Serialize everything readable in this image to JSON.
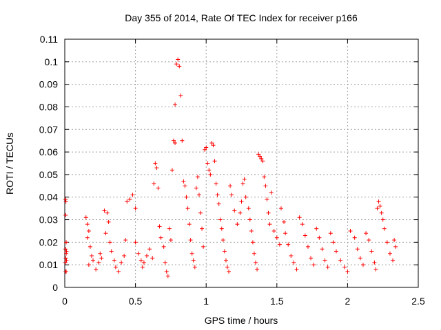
{
  "chart_data": {
    "type": "scatter",
    "title": "Day 355 of 2014, Rate Of TEC Index for receiver p166",
    "xlabel": "GPS time / hours",
    "ylabel": "ROTI / TECUs",
    "xlim": [
      0,
      2.5
    ],
    "ylim": [
      0,
      0.11
    ],
    "grid": true,
    "x_ticks": [
      0,
      0.5,
      1,
      1.5,
      2,
      2.5
    ],
    "x_tick_labels": [
      "0",
      "0.5",
      "1",
      "1.5",
      "2",
      "2.5"
    ],
    "y_ticks": [
      0,
      0.01,
      0.02,
      0.03,
      0.04,
      0.05,
      0.06,
      0.07,
      0.08,
      0.09,
      0.1,
      0.11
    ],
    "y_tick_labels": [
      "0",
      "0.01",
      "0.02",
      "0.03",
      "0.04",
      "0.05",
      "0.06",
      "0.07",
      "0.08",
      "0.09",
      "0.1",
      "0.11"
    ],
    "marker": "+",
    "color": "#ff0000",
    "series": [
      {
        "name": "ROTI",
        "points": [
          [
            0.005,
            0.039
          ],
          [
            0.008,
            0.038
          ],
          [
            0.006,
            0.032
          ],
          [
            0.01,
            0.02
          ],
          [
            0.005,
            0.017
          ],
          [
            0.01,
            0.015
          ],
          [
            0.007,
            0.013
          ],
          [
            0.012,
            0.012
          ],
          [
            0.004,
            0.011
          ],
          [
            0.006,
            0.007
          ],
          [
            0.01,
            0.007
          ],
          [
            0.012,
            0.016
          ],
          [
            0.15,
            0.031
          ],
          [
            0.16,
            0.028
          ],
          [
            0.17,
            0.025
          ],
          [
            0.16,
            0.022
          ],
          [
            0.18,
            0.018
          ],
          [
            0.19,
            0.014
          ],
          [
            0.2,
            0.012
          ],
          [
            0.17,
            0.01
          ],
          [
            0.22,
            0.008
          ],
          [
            0.24,
            0.011
          ],
          [
            0.25,
            0.015
          ],
          [
            0.26,
            0.013
          ],
          [
            0.28,
            0.034
          ],
          [
            0.3,
            0.033
          ],
          [
            0.31,
            0.029
          ],
          [
            0.29,
            0.024
          ],
          [
            0.32,
            0.02
          ],
          [
            0.33,
            0.016
          ],
          [
            0.35,
            0.012
          ],
          [
            0.36,
            0.009
          ],
          [
            0.38,
            0.007
          ],
          [
            0.4,
            0.011
          ],
          [
            0.42,
            0.014
          ],
          [
            0.43,
            0.021
          ],
          [
            0.44,
            0.038
          ],
          [
            0.46,
            0.039
          ],
          [
            0.48,
            0.041
          ],
          [
            0.5,
            0.035
          ],
          [
            0.5,
            0.02
          ],
          [
            0.52,
            0.015
          ],
          [
            0.54,
            0.012
          ],
          [
            0.55,
            0.009
          ],
          [
            0.56,
            0.011
          ],
          [
            0.58,
            0.014
          ],
          [
            0.6,
            0.017
          ],
          [
            0.62,
            0.013
          ],
          [
            0.63,
            0.046
          ],
          [
            0.64,
            0.055
          ],
          [
            0.65,
            0.053
          ],
          [
            0.66,
            0.044
          ],
          [
            0.67,
            0.027
          ],
          [
            0.68,
            0.022
          ],
          [
            0.7,
            0.018
          ],
          [
            0.71,
            0.011
          ],
          [
            0.72,
            0.007
          ],
          [
            0.73,
            0.005
          ],
          [
            0.74,
            0.026
          ],
          [
            0.75,
            0.021
          ],
          [
            0.76,
            0.052
          ],
          [
            0.77,
            0.065
          ],
          [
            0.78,
            0.064
          ],
          [
            0.79,
            0.099
          ],
          [
            0.8,
            0.101
          ],
          [
            0.81,
            0.098
          ],
          [
            0.78,
            0.081
          ],
          [
            0.82,
            0.085
          ],
          [
            0.83,
            0.065
          ],
          [
            0.84,
            0.047
          ],
          [
            0.85,
            0.045
          ],
          [
            0.86,
            0.04
          ],
          [
            0.87,
            0.035
          ],
          [
            0.88,
            0.028
          ],
          [
            0.89,
            0.021
          ],
          [
            0.9,
            0.015
          ],
          [
            0.91,
            0.012
          ],
          [
            0.92,
            0.009
          ],
          [
            0.93,
            0.044
          ],
          [
            0.94,
            0.049
          ],
          [
            0.95,
            0.041
          ],
          [
            0.96,
            0.033
          ],
          [
            0.97,
            0.026
          ],
          [
            0.98,
            0.018
          ],
          [
            0.99,
            0.061
          ],
          [
            1.0,
            0.062
          ],
          [
            1.01,
            0.055
          ],
          [
            1.02,
            0.052
          ],
          [
            1.03,
            0.05
          ],
          [
            1.04,
            0.064
          ],
          [
            1.05,
            0.063
          ],
          [
            1.06,
            0.056
          ],
          [
            1.07,
            0.046
          ],
          [
            1.08,
            0.041
          ],
          [
            1.09,
            0.037
          ],
          [
            1.1,
            0.03
          ],
          [
            1.11,
            0.026
          ],
          [
            1.12,
            0.021
          ],
          [
            1.13,
            0.016
          ],
          [
            1.14,
            0.012
          ],
          [
            1.15,
            0.009
          ],
          [
            1.16,
            0.007
          ],
          [
            1.17,
            0.045
          ],
          [
            1.18,
            0.041
          ],
          [
            1.2,
            0.034
          ],
          [
            1.22,
            0.028
          ],
          [
            1.24,
            0.033
          ],
          [
            1.25,
            0.038
          ],
          [
            1.26,
            0.046
          ],
          [
            1.27,
            0.048
          ],
          [
            1.28,
            0.04
          ],
          [
            1.3,
            0.035
          ],
          [
            1.31,
            0.03
          ],
          [
            1.32,
            0.025
          ],
          [
            1.33,
            0.02
          ],
          [
            1.34,
            0.015
          ],
          [
            1.35,
            0.011
          ],
          [
            1.36,
            0.008
          ],
          [
            1.37,
            0.059
          ],
          [
            1.38,
            0.058
          ],
          [
            1.39,
            0.057
          ],
          [
            1.4,
            0.056
          ],
          [
            1.41,
            0.049
          ],
          [
            1.42,
            0.045
          ],
          [
            1.43,
            0.039
          ],
          [
            1.44,
            0.033
          ],
          [
            1.45,
            0.028
          ],
          [
            1.46,
            0.042
          ],
          [
            1.48,
            0.025
          ],
          [
            1.5,
            0.022
          ],
          [
            1.52,
            0.019
          ],
          [
            1.53,
            0.035
          ],
          [
            1.55,
            0.029
          ],
          [
            1.56,
            0.024
          ],
          [
            1.58,
            0.019
          ],
          [
            1.6,
            0.014
          ],
          [
            1.62,
            0.011
          ],
          [
            1.64,
            0.008
          ],
          [
            1.66,
            0.031
          ],
          [
            1.68,
            0.028
          ],
          [
            1.7,
            0.023
          ],
          [
            1.72,
            0.018
          ],
          [
            1.74,
            0.013
          ],
          [
            1.76,
            0.01
          ],
          [
            1.78,
            0.026
          ],
          [
            1.8,
            0.022
          ],
          [
            1.82,
            0.017
          ],
          [
            1.84,
            0.012
          ],
          [
            1.86,
            0.009
          ],
          [
            1.88,
            0.024
          ],
          [
            1.9,
            0.02
          ],
          [
            1.92,
            0.016
          ],
          [
            1.95,
            0.012
          ],
          [
            1.98,
            0.009
          ],
          [
            2.0,
            0.007
          ],
          [
            2.02,
            0.025
          ],
          [
            2.05,
            0.022
          ],
          [
            2.07,
            0.017
          ],
          [
            2.09,
            0.013
          ],
          [
            2.11,
            0.01
          ],
          [
            2.13,
            0.024
          ],
          [
            2.15,
            0.021
          ],
          [
            2.17,
            0.016
          ],
          [
            2.19,
            0.011
          ],
          [
            2.2,
            0.008
          ],
          [
            2.21,
            0.035
          ],
          [
            2.22,
            0.038
          ],
          [
            2.23,
            0.036
          ],
          [
            2.24,
            0.033
          ],
          [
            2.25,
            0.03
          ],
          [
            2.26,
            0.026
          ],
          [
            2.28,
            0.02
          ],
          [
            2.3,
            0.015
          ],
          [
            2.32,
            0.012
          ],
          [
            2.33,
            0.021
          ],
          [
            2.34,
            0.018
          ]
        ]
      }
    ]
  }
}
